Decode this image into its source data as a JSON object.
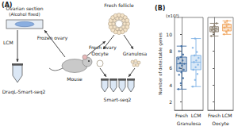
{
  "panel_labels": [
    "(A)",
    "(B)"
  ],
  "diagram": {
    "section": {
      "title": "Ovarian section",
      "note": "(Alcohol fixed)"
    },
    "lcm": "LCM",
    "frozen": "Frozen ovary",
    "mouse": "Mouse",
    "fresh_ovary": "Fresh ovary",
    "fresh_follicle": "Fresh follicle",
    "oocyte": "Oocyte",
    "granulosa": "Granulosa",
    "method_lcm": "DraqL-Smart-seq2",
    "method_fresh": "Smart-seq2"
  },
  "chart_data": [
    {
      "type": "boxplot",
      "xlabel": "Granulosa",
      "ylabel": "Number of detectable genes",
      "y_unit": "(x10³)",
      "categories": [
        "Fresh",
        "LCM"
      ],
      "colors": [
        "#3b6aa0",
        "#7fb2e5"
      ],
      "boxes": [
        [
          3.5,
          5.6,
          6.5,
          7.3,
          8.6
        ],
        [
          3.8,
          5.8,
          6.7,
          7.5,
          9.5
        ]
      ],
      "points": [
        [
          3.5,
          4.2,
          4.8,
          5.2,
          5.5,
          5.8,
          6.0,
          6.3,
          6.5,
          6.6,
          6.9,
          7.1,
          7.3,
          7.6,
          8.0,
          8.6
        ],
        [
          3.8,
          4.6,
          5.3,
          5.8,
          6.1,
          6.4,
          6.7,
          6.9,
          7.2,
          7.5,
          7.9,
          8.4,
          9.5
        ]
      ],
      "ylim": [
        1,
        12
      ],
      "yticks": [
        2,
        4,
        6,
        8,
        10
      ]
    },
    {
      "type": "boxplot",
      "xlabel": "Oocyte",
      "categories": [
        "Fresh",
        "LCM"
      ],
      "colors": [
        "#8c8070",
        "#f0a35a"
      ],
      "boxes": [
        [
          9.8,
          10.3,
          10.6,
          10.9,
          11.3
        ],
        [
          10.0,
          10.4,
          10.8,
          11.2,
          11.6
        ]
      ],
      "points": [
        [
          9.8,
          10.2,
          10.4,
          10.5,
          10.6,
          10.7,
          10.8,
          11.0,
          11.3
        ],
        [
          10.0,
          10.3,
          10.5,
          10.8,
          11.0,
          11.2,
          11.4,
          11.6
        ]
      ],
      "ylim": [
        1,
        12
      ],
      "yticks": [
        2,
        4,
        6,
        8,
        10
      ],
      "tick_labels": "x"
    }
  ]
}
